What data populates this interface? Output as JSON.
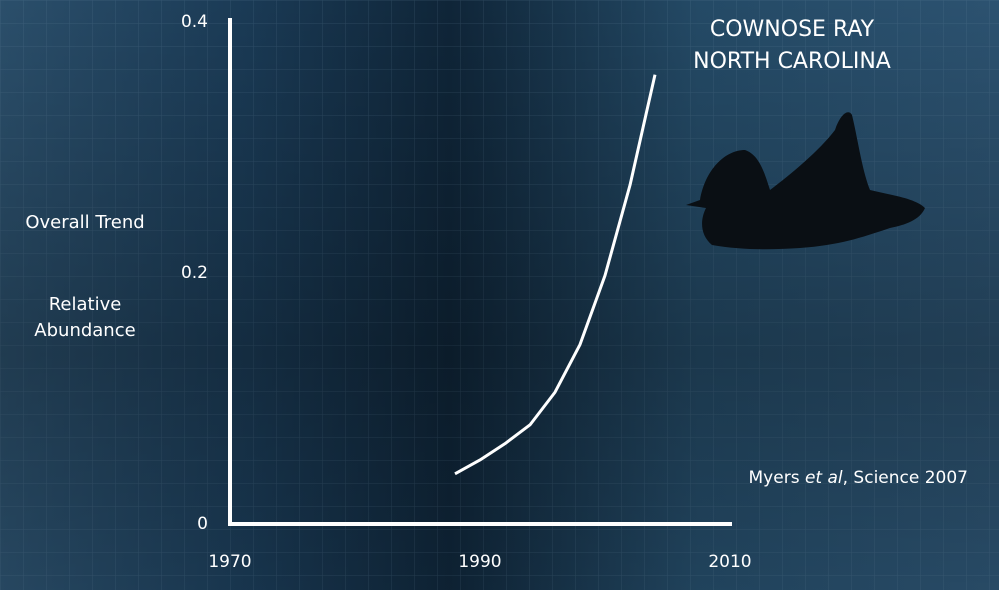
{
  "chart_data": {
    "type": "line",
    "title": [
      "COWNOSE RAY",
      "NORTH CAROLINA"
    ],
    "y_label_top": "Overall Trend",
    "y_label": "Relative Abundance",
    "source": [
      "Myers ",
      "et al",
      ", Science 2007"
    ],
    "x": [
      1988,
      1990,
      1992,
      1994,
      1996,
      1998,
      2000,
      2002,
      2004
    ],
    "series": [
      {
        "color": "#ffffff",
        "values": [
          0.04,
          0.051,
          0.064,
          0.079,
          0.105,
          0.143,
          0.198,
          0.27,
          0.358
        ]
      }
    ],
    "xlim": [
      1970,
      2010
    ],
    "xticks": [
      1970,
      1990,
      2010
    ],
    "ylim": [
      0,
      0.4
    ],
    "yticks": [
      0,
      0.2,
      0.4
    ]
  }
}
